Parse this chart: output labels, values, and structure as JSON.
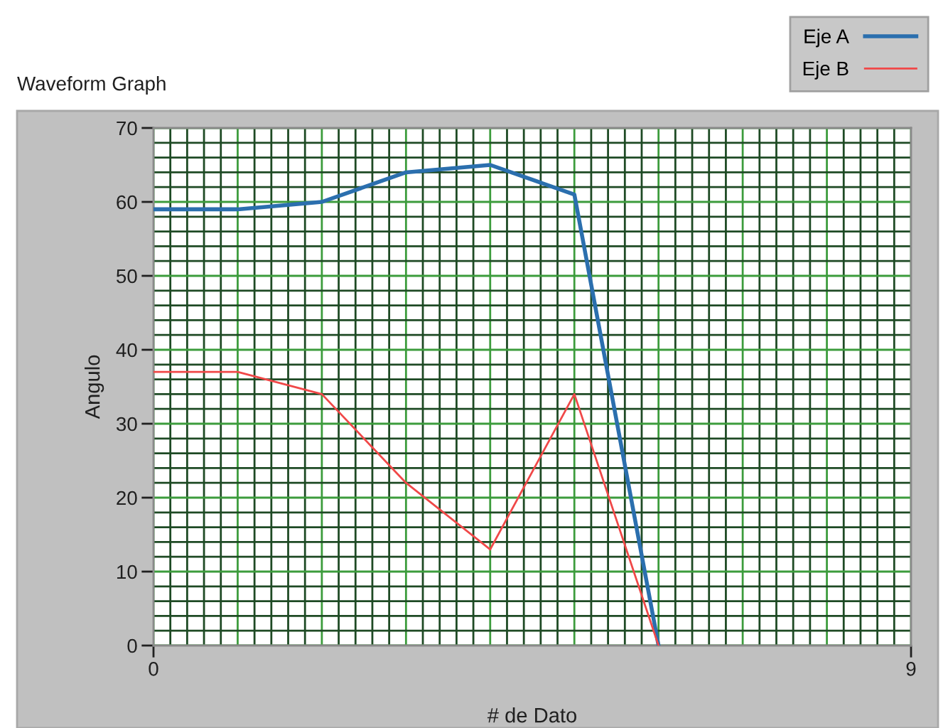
{
  "chart_data": {
    "type": "line",
    "title": "Waveform Graph",
    "xlabel": "# de Dato",
    "ylabel": "Angulo",
    "x": [
      0,
      1,
      2,
      3,
      4,
      5,
      6
    ],
    "series": [
      {
        "name": "Eje A",
        "color": "#2b6fae",
        "values": [
          59,
          59,
          60,
          64,
          65,
          61,
          0
        ]
      },
      {
        "name": "Eje B",
        "color": "#f04848",
        "values": [
          37,
          37,
          34,
          22,
          13,
          34,
          0
        ]
      }
    ],
    "xlim": [
      0,
      9
    ],
    "ylim": [
      0,
      70
    ],
    "xticks": [
      0,
      {
        "value": 0.2,
        "label": null
      },
      {
        "value": 0.4,
        "label": null
      },
      {
        "value": 0.6,
        "label": null
      },
      {
        "value": 0.8,
        "label": null
      },
      {
        "value": 1,
        "label": null
      },
      {
        "value": 1.2,
        "label": null
      },
      {
        "value": 1.4,
        "label": null
      },
      {
        "value": 1.6,
        "label": null
      },
      {
        "value": 1.8,
        "label": null
      },
      {
        "value": 2,
        "label": null
      },
      {
        "value": 2.2,
        "label": null
      },
      {
        "value": 2.4,
        "label": null
      },
      {
        "value": 2.6,
        "label": null
      },
      {
        "value": 2.8,
        "label": null
      },
      {
        "value": 3,
        "label": null
      },
      {
        "value": 3.2,
        "label": null
      },
      {
        "value": 3.4,
        "label": null
      },
      {
        "value": 3.6,
        "label": null
      },
      {
        "value": 3.8,
        "label": null
      },
      {
        "value": 4,
        "label": null
      },
      {
        "value": 4.2,
        "label": null
      },
      {
        "value": 4.4,
        "label": null
      },
      {
        "value": 4.6,
        "label": null
      },
      {
        "value": 4.8,
        "label": null
      },
      {
        "value": 5,
        "label": null
      },
      {
        "value": 5.2,
        "label": null
      },
      {
        "value": 5.4,
        "label": null
      },
      {
        "value": 5.6,
        "label": null
      },
      {
        "value": 5.8,
        "label": null
      },
      {
        "value": 6,
        "label": null
      },
      {
        "value": 6.2,
        "label": null
      },
      {
        "value": 6.4,
        "label": null
      },
      {
        "value": 6.6,
        "label": null
      },
      {
        "value": 6.8,
        "label": null
      },
      {
        "value": 7,
        "label": null
      },
      {
        "value": 7.2,
        "label": null
      },
      {
        "value": 7.4,
        "label": null
      },
      {
        "value": 7.6,
        "label": null
      },
      {
        "value": 7.8,
        "label": null
      },
      {
        "value": 8,
        "label": null
      },
      {
        "value": 8.2,
        "label": null
      },
      {
        "value": 8.4,
        "label": null
      },
      {
        "value": 8.6,
        "label": null
      },
      {
        "value": 8.8,
        "label": null
      },
      9
    ],
    "yticks": [
      0,
      {
        "value": 2,
        "label": null
      },
      {
        "value": 4,
        "label": null
      },
      {
        "value": 6,
        "label": null
      },
      {
        "value": 8,
        "label": null
      },
      10,
      {
        "value": 12,
        "label": null
      },
      {
        "value": 14,
        "label": null
      },
      {
        "value": 16,
        "label": null
      },
      {
        "value": 18,
        "label": null
      },
      20,
      {
        "value": 22,
        "label": null
      },
      {
        "value": 24,
        "label": null
      },
      {
        "value": 26,
        "label": null
      },
      {
        "value": 28,
        "label": null
      },
      30,
      {
        "value": 32,
        "label": null
      },
      {
        "value": 34,
        "label": null
      },
      {
        "value": 36,
        "label": null
      },
      {
        "value": 38,
        "label": null
      },
      40,
      {
        "value": 42,
        "label": null
      },
      {
        "value": 44,
        "label": null
      },
      {
        "value": 46,
        "label": null
      },
      {
        "value": 48,
        "label": null
      },
      50,
      {
        "value": 52,
        "label": null
      },
      {
        "value": 54,
        "label": null
      },
      {
        "value": 56,
        "label": null
      },
      {
        "value": 58,
        "label": null
      },
      60,
      {
        "value": 62,
        "label": null
      },
      {
        "value": 64,
        "label": null
      },
      {
        "value": 66,
        "label": null
      },
      {
        "value": 68,
        "label": null
      },
      70
    ],
    "grid": true,
    "legend": "top right",
    "line_style": "solid"
  }
}
